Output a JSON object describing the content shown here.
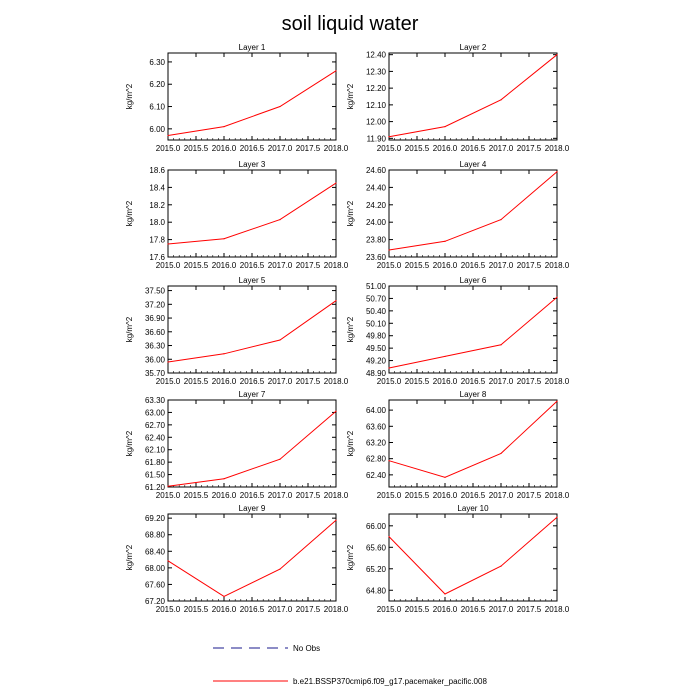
{
  "title": "soil liquid water",
  "colors": {
    "series": "#ff0000",
    "no_obs": "#1a1a8c",
    "axis": "#000000",
    "background": "#ffffff"
  },
  "legend": {
    "no_obs_label": "No Obs",
    "model_label": "b.e21.BSSP370cmip6.f09_g17.pacemaker_pacific.008"
  },
  "chart_data": [
    {
      "type": "line",
      "title": "Layer 1",
      "xlabel": "",
      "ylabel": "kg/m^2",
      "xlim": [
        2015,
        2018
      ],
      "ylim": [
        5.95,
        6.34
      ],
      "x_ticks": [
        "2015.0",
        "2015.5",
        "2016.0",
        "2016.5",
        "2017.0",
        "2017.5",
        "2018.0"
      ],
      "y_ticks": [
        "6.00",
        "6.10",
        "6.20",
        "6.30"
      ],
      "series": [
        {
          "name": "b.e21.BSSP370cmip6.f09_g17.pacemaker_pacific.008",
          "x": [
            2015,
            2016,
            2017,
            2018
          ],
          "values": [
            5.97,
            6.01,
            6.1,
            6.26
          ]
        }
      ]
    },
    {
      "type": "line",
      "title": "Layer 2",
      "xlabel": "",
      "ylabel": "kg/m^2",
      "xlim": [
        2015,
        2018
      ],
      "ylim": [
        11.89,
        12.41
      ],
      "x_ticks": [
        "2015.0",
        "2015.5",
        "2016.0",
        "2016.5",
        "2017.0",
        "2017.5",
        "2018.0"
      ],
      "y_ticks": [
        "11.90",
        "12.00",
        "12.10",
        "12.20",
        "12.30",
        "12.40"
      ],
      "series": [
        {
          "name": "b.e21.BSSP370cmip6.f09_g17.pacemaker_pacific.008",
          "x": [
            2015,
            2016,
            2017,
            2018
          ],
          "values": [
            11.91,
            11.97,
            12.13,
            12.4
          ]
        }
      ]
    },
    {
      "type": "line",
      "title": "Layer 3",
      "xlabel": "",
      "ylabel": "kg/m^2",
      "xlim": [
        2015,
        2018
      ],
      "ylim": [
        17.6,
        18.6
      ],
      "x_ticks": [
        "2015.0",
        "2015.5",
        "2016.0",
        "2016.5",
        "2017.0",
        "2017.5",
        "2018.0"
      ],
      "y_ticks": [
        "17.6",
        "17.8",
        "18.0",
        "18.2",
        "18.4",
        "18.6"
      ],
      "series": [
        {
          "name": "b.e21.BSSP370cmip6.f09_g17.pacemaker_pacific.008",
          "x": [
            2015,
            2016,
            2017,
            2018
          ],
          "values": [
            17.75,
            17.81,
            18.03,
            18.45
          ]
        }
      ]
    },
    {
      "type": "line",
      "title": "Layer 4",
      "xlabel": "",
      "ylabel": "kg/m^2",
      "xlim": [
        2015,
        2018
      ],
      "ylim": [
        23.6,
        24.6
      ],
      "x_ticks": [
        "2015.0",
        "2015.5",
        "2016.0",
        "2016.5",
        "2017.0",
        "2017.5",
        "2018.0"
      ],
      "y_ticks": [
        "23.60",
        "23.80",
        "24.00",
        "24.20",
        "24.40",
        "24.60"
      ],
      "series": [
        {
          "name": "b.e21.BSSP370cmip6.f09_g17.pacemaker_pacific.008",
          "x": [
            2015,
            2016,
            2017,
            2018
          ],
          "values": [
            23.68,
            23.78,
            24.03,
            24.58
          ]
        }
      ]
    },
    {
      "type": "line",
      "title": "Layer 5",
      "xlabel": "",
      "ylabel": "kg/m^2",
      "xlim": [
        2015,
        2018
      ],
      "ylim": [
        35.7,
        37.6
      ],
      "x_ticks": [
        "2015.0",
        "2015.5",
        "2016.0",
        "2016.5",
        "2017.0",
        "2017.5",
        "2018.0"
      ],
      "y_ticks": [
        "35.70",
        "36.00",
        "36.30",
        "36.60",
        "36.90",
        "37.20",
        "37.50"
      ],
      "series": [
        {
          "name": "b.e21.BSSP370cmip6.f09_g17.pacemaker_pacific.008",
          "x": [
            2015,
            2016,
            2017,
            2018
          ],
          "values": [
            35.94,
            36.12,
            36.42,
            37.28
          ]
        }
      ]
    },
    {
      "type": "line",
      "title": "Layer 6",
      "xlabel": "",
      "ylabel": "kg/m^2",
      "xlim": [
        2015,
        2018
      ],
      "ylim": [
        48.9,
        51.0
      ],
      "x_ticks": [
        "2015.0",
        "2015.5",
        "2016.0",
        "2016.5",
        "2017.0",
        "2017.5",
        "2018.0"
      ],
      "y_ticks": [
        "48.90",
        "49.20",
        "49.50",
        "49.80",
        "50.10",
        "50.40",
        "50.70",
        "51.00"
      ],
      "series": [
        {
          "name": "b.e21.BSSP370cmip6.f09_g17.pacemaker_pacific.008",
          "x": [
            2015,
            2016,
            2017,
            2018
          ],
          "values": [
            49.02,
            49.3,
            49.58,
            50.73
          ]
        }
      ]
    },
    {
      "type": "line",
      "title": "Layer 7",
      "xlabel": "",
      "ylabel": "kg/m^2",
      "xlim": [
        2015,
        2018
      ],
      "ylim": [
        61.2,
        63.3
      ],
      "x_ticks": [
        "2015.0",
        "2015.5",
        "2016.0",
        "2016.5",
        "2017.0",
        "2017.5",
        "2018.0"
      ],
      "y_ticks": [
        "61.20",
        "61.50",
        "61.80",
        "62.10",
        "62.40",
        "62.70",
        "63.00",
        "63.30"
      ],
      "series": [
        {
          "name": "b.e21.BSSP370cmip6.f09_g17.pacemaker_pacific.008",
          "x": [
            2015,
            2016,
            2017,
            2018
          ],
          "values": [
            61.22,
            61.4,
            61.87,
            63.03
          ]
        }
      ]
    },
    {
      "type": "line",
      "title": "Layer 8",
      "xlabel": "",
      "ylabel": "kg/m^2",
      "xlim": [
        2015,
        2018
      ],
      "ylim": [
        62.1,
        64.25
      ],
      "x_ticks": [
        "2015.0",
        "2015.5",
        "2016.0",
        "2016.5",
        "2017.0",
        "2017.5",
        "2018.0"
      ],
      "y_ticks": [
        "62.40",
        "62.80",
        "63.20",
        "63.60",
        "64.00"
      ],
      "series": [
        {
          "name": "b.e21.BSSP370cmip6.f09_g17.pacemaker_pacific.008",
          "x": [
            2015,
            2016,
            2017,
            2018
          ],
          "values": [
            62.75,
            62.34,
            62.93,
            64.22
          ]
        }
      ]
    },
    {
      "type": "line",
      "title": "Layer 9",
      "xlabel": "",
      "ylabel": "kg/m^2",
      "xlim": [
        2015,
        2018
      ],
      "ylim": [
        67.2,
        69.3
      ],
      "x_ticks": [
        "2015.0",
        "2015.5",
        "2016.0",
        "2016.5",
        "2017.0",
        "2017.5",
        "2018.0"
      ],
      "y_ticks": [
        "67.20",
        "67.60",
        "68.00",
        "68.40",
        "68.80",
        "69.20"
      ],
      "series": [
        {
          "name": "b.e21.BSSP370cmip6.f09_g17.pacemaker_pacific.008",
          "x": [
            2015,
            2016,
            2017,
            2018
          ],
          "values": [
            68.17,
            67.31,
            67.97,
            69.15
          ]
        }
      ]
    },
    {
      "type": "line",
      "title": "Layer 10",
      "xlabel": "",
      "ylabel": "kg/m^2",
      "xlim": [
        2015,
        2018
      ],
      "ylim": [
        64.6,
        66.22
      ],
      "x_ticks": [
        "2015.0",
        "2015.5",
        "2016.0",
        "2016.5",
        "2017.0",
        "2017.5",
        "2018.0"
      ],
      "y_ticks": [
        "64.80",
        "65.20",
        "65.60",
        "66.00"
      ],
      "series": [
        {
          "name": "b.e21.BSSP370cmip6.f09_g17.pacemaker_pacific.008",
          "x": [
            2015,
            2016,
            2017,
            2018
          ],
          "values": [
            65.8,
            64.73,
            65.25,
            66.16
          ]
        }
      ]
    }
  ]
}
